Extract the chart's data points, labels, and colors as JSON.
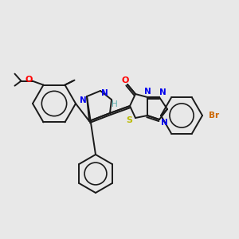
{
  "bg_color": "#e8e8e8",
  "bond_color": "#1a1a1a",
  "atom_colors": {
    "N": "#0000ee",
    "O": "#ff0000",
    "S": "#bbbb00",
    "Br": "#cc6600",
    "H": "#5aadad",
    "C": "#1a1a1a"
  },
  "lw": 1.4,
  "figsize": [
    3.0,
    3.0
  ],
  "dpi": 100
}
